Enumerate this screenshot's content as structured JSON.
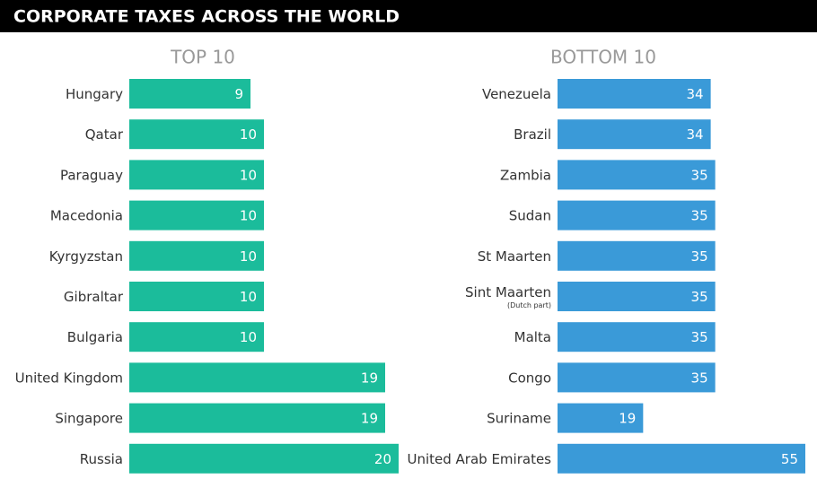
{
  "header": {
    "title": "CORPORATE TAXES ACROSS THE WORLD"
  },
  "chart_data": [
    {
      "type": "bar",
      "orientation": "horizontal",
      "title": "TOP 10",
      "color": "#1bbc9b",
      "categories": [
        "Hungary",
        "Qatar",
        "Paraguay",
        "Macedonia",
        "Kyrgyzstan",
        "Gibraltar",
        "Bulgaria",
        "United Kingdom",
        "Singapore",
        "Russia"
      ],
      "values": [
        9,
        10,
        10,
        10,
        10,
        10,
        10,
        19,
        19,
        20
      ],
      "xlim": [
        0,
        20
      ]
    },
    {
      "type": "bar",
      "orientation": "horizontal",
      "title": "BOTTOM 10",
      "color": "#3a9ad8",
      "categories": [
        "Venezuela",
        "Brazil",
        "Zambia",
        "Sudan",
        "St Maarten",
        "Sint Maarten",
        "Malta",
        "Congo",
        "Suriname",
        "United Arab Emirates"
      ],
      "category_sublabels": [
        null,
        null,
        null,
        null,
        null,
        "(Dutch part)",
        null,
        null,
        null,
        null
      ],
      "values": [
        34,
        34,
        35,
        35,
        35,
        35,
        35,
        35,
        19,
        55
      ],
      "xlim": [
        0,
        55
      ]
    }
  ]
}
